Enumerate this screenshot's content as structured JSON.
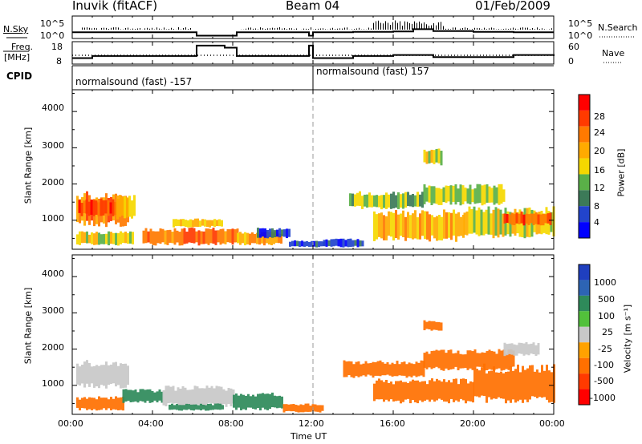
{
  "header": {
    "station": "Inuvik (fitACF)",
    "beam": "Beam 04",
    "date": "01/Feb/2009"
  },
  "panels": {
    "nsky": {
      "label": "N.Sky",
      "ticks_left": [
        "10^5",
        "10^0"
      ],
      "ticks_right": [
        "10^5",
        "10^0"
      ],
      "right_label": "N.Search"
    },
    "freq": {
      "label_top": "Freq.",
      "label_bottom": "[MHz]",
      "ticks_left": [
        "18",
        "8"
      ],
      "ticks_right": [
        "60",
        "0"
      ],
      "right_label": "Nave"
    },
    "cpid": {
      "label": "CPID",
      "segments": [
        {
          "text": "normalsound (fast) -157",
          "start_hour": 0
        },
        {
          "text": "normalsound (fast) 157",
          "start_hour": 12
        }
      ]
    }
  },
  "x_axis": {
    "label": "Time UT",
    "ticks": [
      "00:00",
      "04:00",
      "08:00",
      "12:00",
      "16:00",
      "20:00",
      "00:00"
    ]
  },
  "y_axis": {
    "label": "Slant Range [km]",
    "ticks": [
      "1000",
      "2000",
      "3000",
      "4000"
    ]
  },
  "colorbars": {
    "power": {
      "label": "Power [dB]",
      "ticks": [
        "4",
        "8",
        "12",
        "16",
        "20",
        "24",
        "28"
      ],
      "colors": [
        "#0000ff",
        "#2244cc",
        "#3c7a58",
        "#5ab048",
        "#f5d800",
        "#ffaa00",
        "#ff7a00",
        "#ff3a00",
        "#ff0000"
      ]
    },
    "velocity": {
      "label": "Velocity [m s⁻¹]",
      "ticks": [
        "1000",
        "500",
        "100",
        "25",
        "-25",
        "-100",
        "-500",
        "-1000"
      ],
      "colors": [
        "#1f3fbf",
        "#2d64b4",
        "#2e8a5a",
        "#52c13b",
        "#c8c8c8",
        "#ffa200",
        "#ff7000",
        "#ff3a00",
        "#ff0000"
      ]
    }
  },
  "chart_data": [
    {
      "type": "line",
      "title": "N.Sky / N.Search",
      "x": [
        0,
        2,
        4,
        6.2,
        7,
        7.6,
        8.2,
        10.8,
        11.8,
        12,
        14,
        16,
        17,
        18,
        20,
        22,
        24
      ],
      "series": [
        {
          "name": "N.Sky",
          "values": [
            1.2,
            1.2,
            1.2,
            0.3,
            0.3,
            0.3,
            1.2,
            1.2,
            0.3,
            1.2,
            1.3,
            1.4,
            2.0,
            1.5,
            1.3,
            1.2,
            1.2
          ]
        }
      ],
      "ylim": [
        0,
        5
      ]
    },
    {
      "type": "line",
      "title": "Freq / Nave",
      "x": [
        0,
        1,
        6.2,
        7.0,
        7.6,
        8.2,
        10.8,
        11.8,
        12,
        14,
        16,
        18,
        22,
        24
      ],
      "series": [
        {
          "name": "Freq.",
          "values": [
            10.5,
            11.5,
            16.5,
            16.5,
            15.5,
            11.5,
            11.5,
            16.5,
            10.5,
            11.5,
            12,
            11,
            12,
            11.5
          ]
        },
        {
          "name": "Nave",
          "values": [
            33,
            33,
            33,
            33,
            33,
            33,
            33,
            33,
            33,
            33,
            33,
            33,
            33,
            33
          ]
        }
      ],
      "ylim": [
        8,
        18
      ]
    },
    {
      "type": "heatmap",
      "title": "Power",
      "xlabel": "Time UT",
      "ylabel": "Slant Range [km]",
      "xlim": [
        0,
        24
      ],
      "ylim": [
        200,
        4600
      ],
      "cells": [
        {
          "x0": 0.2,
          "x1": 2.8,
          "y0": 800,
          "y1": 1800,
          "v": 26
        },
        {
          "x0": 0.3,
          "x1": 2.2,
          "y0": 1100,
          "y1": 1600,
          "v": 29
        },
        {
          "x0": 2.2,
          "x1": 3.1,
          "y0": 1000,
          "y1": 1700,
          "v": 20
        },
        {
          "x0": 0.2,
          "x1": 3.0,
          "y0": 300,
          "y1": 700,
          "v": 18
        },
        {
          "x0": 3.5,
          "x1": 8.2,
          "y0": 300,
          "y1": 800,
          "v": 27
        },
        {
          "x0": 8.2,
          "x1": 10.4,
          "y0": 300,
          "y1": 700,
          "v": 22
        },
        {
          "x0": 5.0,
          "x1": 7.5,
          "y0": 800,
          "y1": 1050,
          "v": 20
        },
        {
          "x0": 9.2,
          "x1": 10.8,
          "y0": 500,
          "y1": 800,
          "v": 5
        },
        {
          "x0": 10.8,
          "x1": 12.5,
          "y0": 250,
          "y1": 450,
          "v": 6
        },
        {
          "x0": 12.5,
          "x1": 14.5,
          "y0": 250,
          "y1": 500,
          "v": 6
        },
        {
          "x0": 13.8,
          "x1": 17.5,
          "y0": 1300,
          "y1": 1800,
          "v": 14
        },
        {
          "x0": 15.0,
          "x1": 19.5,
          "y0": 400,
          "y1": 1300,
          "v": 22
        },
        {
          "x0": 17.5,
          "x1": 21.5,
          "y0": 1400,
          "y1": 2000,
          "v": 16
        },
        {
          "x0": 19.5,
          "x1": 24.0,
          "y0": 500,
          "y1": 1400,
          "v": 18
        },
        {
          "x0": 21.5,
          "x1": 23.8,
          "y0": 850,
          "y1": 1250,
          "v": 29
        },
        {
          "x0": 17.5,
          "x1": 18.4,
          "y0": 2500,
          "y1": 3000,
          "v": 18
        }
      ]
    },
    {
      "type": "heatmap",
      "title": "Velocity",
      "xlabel": "Time UT",
      "ylabel": "Slant Range [km]",
      "xlim": [
        0,
        24
      ],
      "ylim": [
        200,
        4600
      ],
      "cells": [
        {
          "x0": 0.2,
          "x1": 2.8,
          "y0": 900,
          "y1": 1700,
          "v": 0
        },
        {
          "x0": 0.2,
          "x1": 2.5,
          "y0": 300,
          "y1": 700,
          "v": -150
        },
        {
          "x0": 2.5,
          "x1": 4.5,
          "y0": 500,
          "y1": 900,
          "v": 120
        },
        {
          "x0": 4.5,
          "x1": 8.0,
          "y0": 400,
          "y1": 1000,
          "v": 0
        },
        {
          "x0": 4.8,
          "x1": 7.5,
          "y0": 300,
          "y1": 500,
          "v": 150
        },
        {
          "x0": 8.0,
          "x1": 10.5,
          "y0": 300,
          "y1": 800,
          "v": 120
        },
        {
          "x0": 10.5,
          "x1": 12.5,
          "y0": 250,
          "y1": 500,
          "v": -150
        },
        {
          "x0": 13.5,
          "x1": 17.5,
          "y0": 1200,
          "y1": 1700,
          "v": -200
        },
        {
          "x0": 15.0,
          "x1": 20.0,
          "y0": 500,
          "y1": 1200,
          "v": -250
        },
        {
          "x0": 17.5,
          "x1": 22.0,
          "y0": 1400,
          "y1": 2000,
          "v": -200
        },
        {
          "x0": 20.0,
          "x1": 24.0,
          "y0": 500,
          "y1": 1600,
          "v": -300
        },
        {
          "x0": 21.5,
          "x1": 23.2,
          "y0": 1800,
          "y1": 2200,
          "v": 0
        },
        {
          "x0": 17.5,
          "x1": 18.4,
          "y0": 2500,
          "y1": 2800,
          "v": -300
        }
      ]
    }
  ]
}
